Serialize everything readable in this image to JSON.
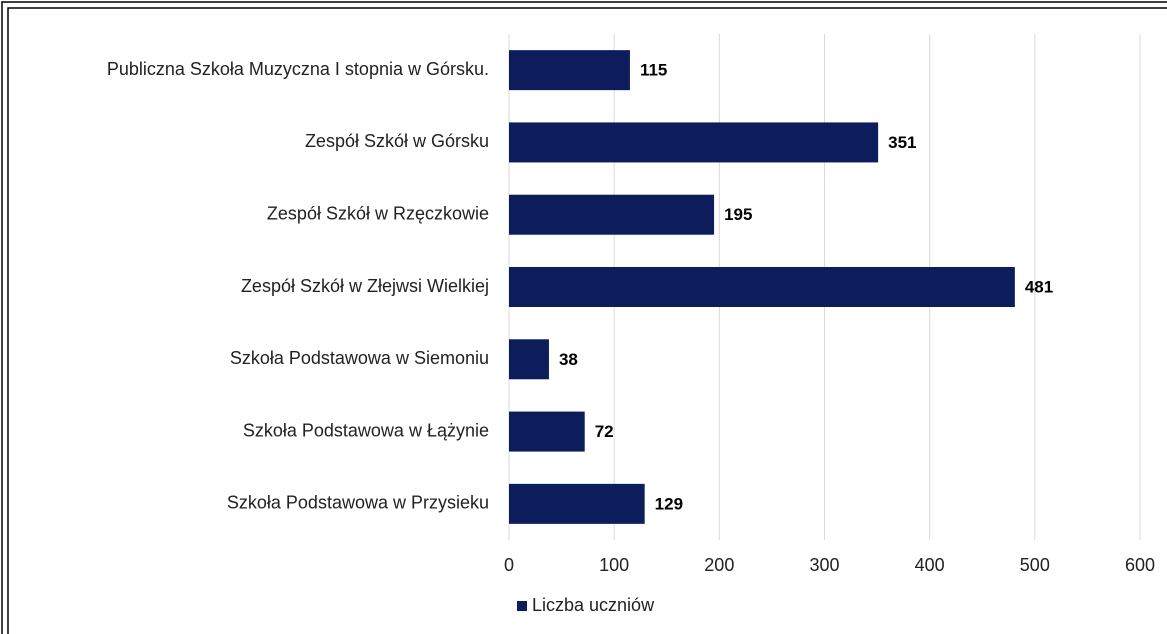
{
  "chart_data": {
    "type": "bar",
    "orientation": "horizontal",
    "categories": [
      "Publiczna Szkoła Muzyczna I stopnia w Górsku.",
      "Zespół Szkół w Górsku",
      "Zespół Szkół w Rzęczkowie",
      "Zespół Szkół w Złejwsi Wielkiej",
      "Szkoła Podstawowa w Siemoniu",
      "Szkoła Podstawowa w Łążynie",
      "Szkoła Podstawowa w Przysieku"
    ],
    "series": [
      {
        "name": "Liczba uczniów",
        "color": "#0d1d5c",
        "values": [
          115,
          351,
          195,
          481,
          38,
          72,
          129
        ]
      }
    ],
    "xlim": [
      0,
      600
    ],
    "xticks": [
      0,
      100,
      200,
      300,
      400,
      500,
      600
    ],
    "grid": true,
    "legend": "bottom"
  }
}
